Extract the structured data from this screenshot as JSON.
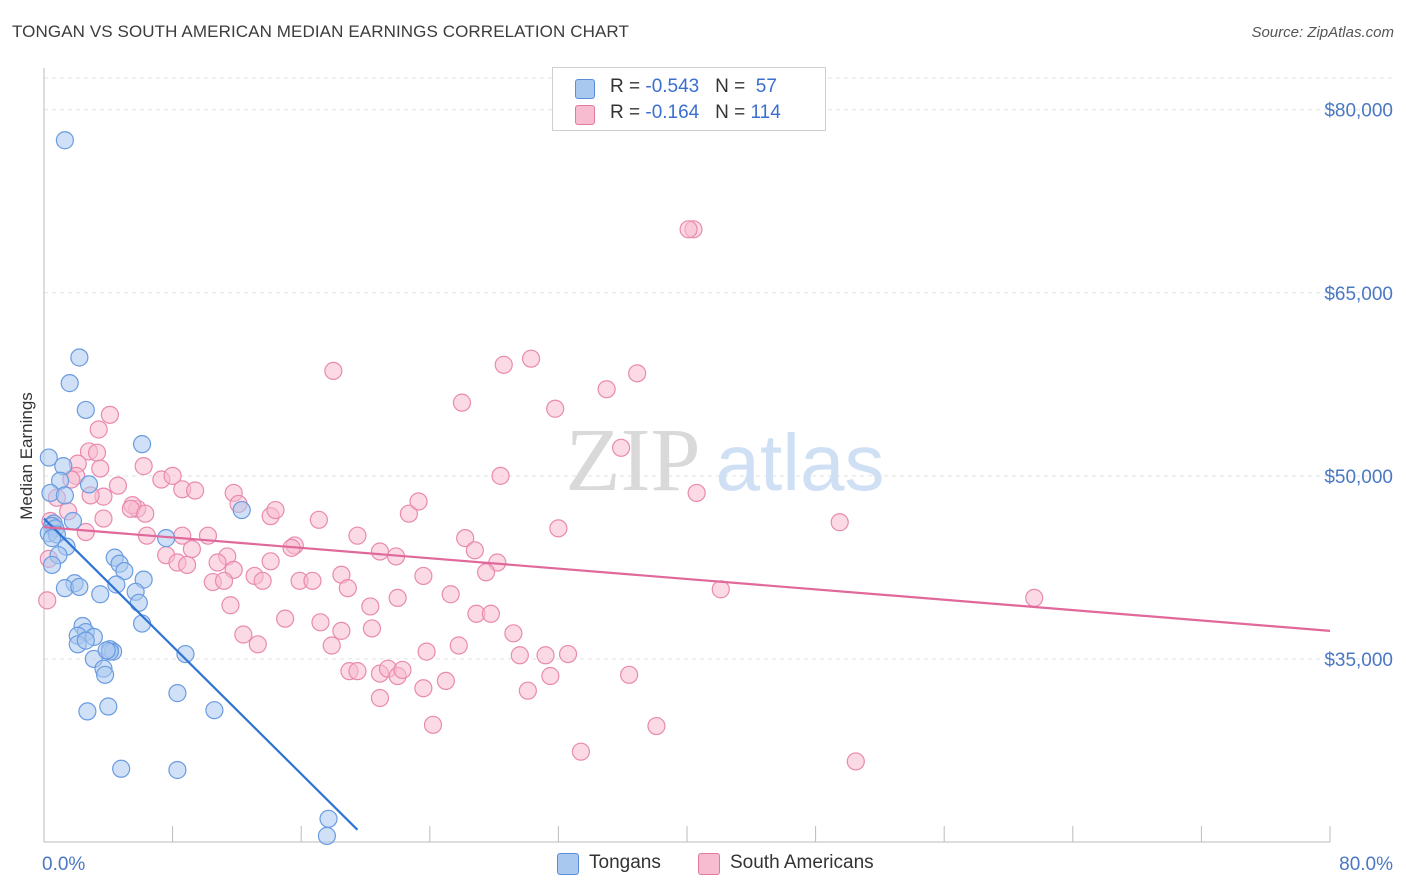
{
  "title": "TONGAN VS SOUTH AMERICAN MEDIAN EARNINGS CORRELATION CHART",
  "source": "Source: ZipAtlas.com",
  "watermark": {
    "zip": "ZIP",
    "atlas": "atlas"
  },
  "legend": {
    "rows": [
      {
        "r_label": "R = ",
        "r_value": "-0.543",
        "n_label": "N = ",
        "n_value": "57",
        "color": "#a9c8f0",
        "border": "#5b8ed6"
      },
      {
        "r_label": "R = ",
        "r_value": "-0.164",
        "n_label": "N = ",
        "n_value": "114",
        "color": "#f7bcd0",
        "border": "#e07aa0"
      }
    ]
  },
  "bottom_legend": [
    {
      "label": "Tongans",
      "color": "#a9c8f0",
      "border": "#5b8ed6"
    },
    {
      "label": "South Americans",
      "color": "#f7bcd0",
      "border": "#e07aa0"
    }
  ],
  "chart_data": {
    "type": "scatter",
    "title": "TONGAN VS SOUTH AMERICAN MEDIAN EARNINGS CORRELATION CHART",
    "xlabel": "",
    "ylabel": "Median Earnings",
    "xlim": [
      0,
      80
    ],
    "ylim": [
      20000,
      82600
    ],
    "x_tick_labels": [
      "0.0%",
      "80.0%"
    ],
    "y_ticks": [
      35000,
      50000,
      65000,
      80000
    ],
    "y_tick_labels": [
      "$35,000",
      "$50,000",
      "$65,000",
      "$80,000"
    ],
    "grid": true,
    "series": [
      {
        "name": "Tongans",
        "color": "#6a9be0",
        "fill": "#a9c8f0",
        "trend": {
          "x": [
            0,
            19.5
          ],
          "y": [
            46500,
            21000
          ],
          "color": "#2e74d2"
        },
        "points": [
          [
            1.3,
            77500
          ],
          [
            1.6,
            57600
          ],
          [
            2.2,
            59700
          ],
          [
            2.6,
            55400
          ],
          [
            6.1,
            52600
          ],
          [
            0.3,
            51500
          ],
          [
            1.2,
            50800
          ],
          [
            1.0,
            49600
          ],
          [
            2.8,
            49300
          ],
          [
            0.4,
            48600
          ],
          [
            1.3,
            48400
          ],
          [
            0.6,
            46100
          ],
          [
            1.8,
            46300
          ],
          [
            0.5,
            45900
          ],
          [
            0.7,
            45700
          ],
          [
            0.3,
            45300
          ],
          [
            0.8,
            45200
          ],
          [
            0.5,
            44900
          ],
          [
            12.3,
            47200
          ],
          [
            7.6,
            44900
          ],
          [
            1.4,
            44200
          ],
          [
            0.9,
            43500
          ],
          [
            0.5,
            42700
          ],
          [
            4.4,
            43300
          ],
          [
            4.7,
            42800
          ],
          [
            5.0,
            42200
          ],
          [
            6.2,
            41500
          ],
          [
            1.9,
            41200
          ],
          [
            1.3,
            40800
          ],
          [
            2.2,
            40900
          ],
          [
            4.5,
            41100
          ],
          [
            5.7,
            40500
          ],
          [
            6.1,
            37900
          ],
          [
            2.4,
            37700
          ],
          [
            2.6,
            37200
          ],
          [
            2.1,
            36900
          ],
          [
            3.1,
            36800
          ],
          [
            2.1,
            36200
          ],
          [
            4.1,
            35800
          ],
          [
            2.6,
            36500
          ],
          [
            4.3,
            35600
          ],
          [
            3.1,
            35000
          ],
          [
            4.1,
            35600
          ],
          [
            3.9,
            35700
          ],
          [
            8.8,
            35400
          ],
          [
            3.7,
            34200
          ],
          [
            3.8,
            33700
          ],
          [
            8.3,
            32200
          ],
          [
            2.7,
            30700
          ],
          [
            4.0,
            31100
          ],
          [
            10.6,
            30800
          ],
          [
            4.8,
            26000
          ],
          [
            8.3,
            25900
          ],
          [
            17.7,
            21900
          ],
          [
            17.6,
            20500
          ],
          [
            5.9,
            39600
          ],
          [
            3.5,
            40300
          ]
        ]
      },
      {
        "name": "South Americans",
        "color": "#e98aae",
        "fill": "#f7bcd0",
        "trend": {
          "x": [
            0,
            80
          ],
          "y": [
            45800,
            37300
          ],
          "color": "#e0689a"
        },
        "points": [
          [
            0.4,
            46300
          ],
          [
            0.3,
            43200
          ],
          [
            0.2,
            39800
          ],
          [
            2.8,
            52000
          ],
          [
            3.3,
            51900
          ],
          [
            2.1,
            51000
          ],
          [
            3.5,
            50600
          ],
          [
            2.0,
            50000
          ],
          [
            1.7,
            49700
          ],
          [
            3.7,
            48300
          ],
          [
            2.9,
            48400
          ],
          [
            4.6,
            49200
          ],
          [
            6.2,
            50800
          ],
          [
            7.3,
            49700
          ],
          [
            8.0,
            50000
          ],
          [
            8.6,
            48900
          ],
          [
            9.4,
            48800
          ],
          [
            5.8,
            47300
          ],
          [
            5.5,
            47600
          ],
          [
            5.4,
            47300
          ],
          [
            6.3,
            46900
          ],
          [
            4.1,
            55000
          ],
          [
            3.4,
            53800
          ],
          [
            11.8,
            48600
          ],
          [
            12.1,
            47700
          ],
          [
            14.1,
            46700
          ],
          [
            14.4,
            47200
          ],
          [
            17.1,
            46400
          ],
          [
            19.5,
            45100
          ],
          [
            22.7,
            46900
          ],
          [
            23.3,
            47900
          ],
          [
            6.4,
            45100
          ],
          [
            8.6,
            45100
          ],
          [
            10.2,
            45100
          ],
          [
            9.2,
            44000
          ],
          [
            11.4,
            43400
          ],
          [
            7.6,
            43500
          ],
          [
            8.3,
            42900
          ],
          [
            8.9,
            42700
          ],
          [
            10.8,
            42900
          ],
          [
            11.8,
            42300
          ],
          [
            14.1,
            43000
          ],
          [
            15.6,
            44300
          ],
          [
            15.4,
            44100
          ],
          [
            20.9,
            43800
          ],
          [
            21.9,
            43400
          ],
          [
            26.2,
            44900
          ],
          [
            26.8,
            43900
          ],
          [
            28.2,
            42900
          ],
          [
            27.5,
            42100
          ],
          [
            10.5,
            41300
          ],
          [
            11.2,
            41400
          ],
          [
            13.1,
            41800
          ],
          [
            13.6,
            41400
          ],
          [
            15.9,
            41400
          ],
          [
            16.7,
            41400
          ],
          [
            18.5,
            41900
          ],
          [
            18.9,
            40800
          ],
          [
            20.3,
            39300
          ],
          [
            22.0,
            40000
          ],
          [
            23.6,
            41800
          ],
          [
            25.3,
            40300
          ],
          [
            15.0,
            38300
          ],
          [
            17.2,
            38000
          ],
          [
            18.5,
            37300
          ],
          [
            11.6,
            39400
          ],
          [
            12.4,
            37000
          ],
          [
            13.3,
            36200
          ],
          [
            17.9,
            36100
          ],
          [
            20.4,
            37500
          ],
          [
            23.8,
            35600
          ],
          [
            25.8,
            36100
          ],
          [
            26.9,
            38700
          ],
          [
            27.8,
            38700
          ],
          [
            29.2,
            37100
          ],
          [
            29.6,
            35300
          ],
          [
            31.2,
            35300
          ],
          [
            32.6,
            35400
          ],
          [
            19.0,
            34000
          ],
          [
            19.5,
            34000
          ],
          [
            20.9,
            33800
          ],
          [
            21.4,
            34200
          ],
          [
            22.0,
            33600
          ],
          [
            22.3,
            34100
          ],
          [
            23.6,
            32600
          ],
          [
            25.0,
            33200
          ],
          [
            20.9,
            31800
          ],
          [
            30.1,
            32400
          ],
          [
            31.5,
            33600
          ],
          [
            36.4,
            33700
          ],
          [
            24.2,
            29600
          ],
          [
            38.1,
            29500
          ],
          [
            33.4,
            27400
          ],
          [
            50.5,
            26600
          ],
          [
            18.0,
            58600
          ],
          [
            26.0,
            56000
          ],
          [
            28.6,
            59100
          ],
          [
            30.3,
            59600
          ],
          [
            31.8,
            55500
          ],
          [
            35.0,
            57100
          ],
          [
            36.9,
            58400
          ],
          [
            35.9,
            52300
          ],
          [
            28.4,
            50000
          ],
          [
            40.6,
            48600
          ],
          [
            32.0,
            45700
          ],
          [
            49.5,
            46200
          ],
          [
            42.1,
            40700
          ],
          [
            61.6,
            40000
          ],
          [
            40.4,
            70200
          ],
          [
            40.1,
            70200
          ],
          [
            0.8,
            48200
          ],
          [
            1.5,
            47100
          ],
          [
            2.6,
            45400
          ],
          [
            3.7,
            46500
          ]
        ]
      }
    ]
  }
}
